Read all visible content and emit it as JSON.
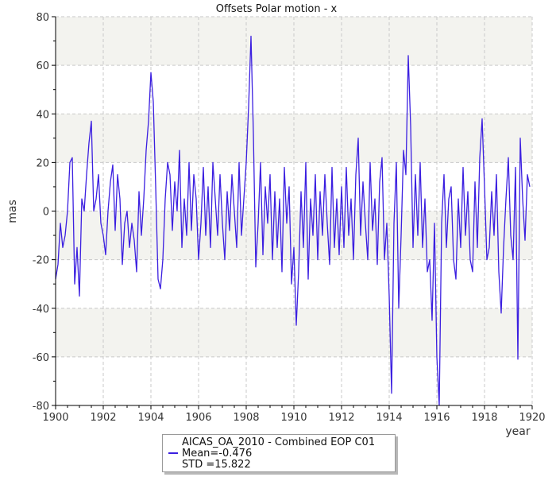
{
  "chart_data": {
    "type": "line",
    "title": "Offsets Polar motion - x",
    "xlabel": "year",
    "ylabel": "mas",
    "xlim": [
      1900,
      1920
    ],
    "ylim": [
      -80,
      80
    ],
    "xticks": [
      1900,
      1902,
      1904,
      1906,
      1908,
      1910,
      1912,
      1914,
      1916,
      1918,
      1920
    ],
    "yticks": [
      -80,
      -60,
      -40,
      -20,
      0,
      20,
      40,
      60,
      80
    ],
    "grid": true,
    "line_color": "#3b1fe0",
    "band_color": "#f3f3ef",
    "legend": {
      "placement": "bottom-center",
      "series_name": "AICAS_OA_2010 - Combined EOP C01",
      "mean_text": "Mean=-0.476",
      "std_text": "STD =15.822"
    },
    "series": [
      {
        "name": "AICAS_OA_2010 - Combined EOP C01",
        "points": [
          [
            1900.0,
            -28
          ],
          [
            1900.1,
            -22
          ],
          [
            1900.2,
            -5
          ],
          [
            1900.3,
            -15
          ],
          [
            1900.4,
            -10
          ],
          [
            1900.5,
            0
          ],
          [
            1900.6,
            20
          ],
          [
            1900.7,
            22
          ],
          [
            1900.8,
            -30
          ],
          [
            1900.9,
            -15
          ],
          [
            1901.0,
            -35
          ],
          [
            1901.1,
            5
          ],
          [
            1901.2,
            0
          ],
          [
            1901.3,
            15
          ],
          [
            1901.4,
            28
          ],
          [
            1901.5,
            37
          ],
          [
            1901.6,
            0
          ],
          [
            1901.7,
            5
          ],
          [
            1901.8,
            15
          ],
          [
            1901.9,
            -5
          ],
          [
            1902.0,
            -10
          ],
          [
            1902.1,
            -18
          ],
          [
            1902.2,
            0
          ],
          [
            1902.3,
            12
          ],
          [
            1902.4,
            19
          ],
          [
            1902.5,
            -8
          ],
          [
            1902.6,
            15
          ],
          [
            1902.7,
            5
          ],
          [
            1902.8,
            -22
          ],
          [
            1902.9,
            -5
          ],
          [
            1903.0,
            0
          ],
          [
            1903.1,
            -15
          ],
          [
            1903.2,
            -5
          ],
          [
            1903.3,
            -12
          ],
          [
            1903.4,
            -25
          ],
          [
            1903.5,
            8
          ],
          [
            1903.6,
            -10
          ],
          [
            1903.7,
            5
          ],
          [
            1903.8,
            25
          ],
          [
            1903.9,
            37
          ],
          [
            1904.0,
            57
          ],
          [
            1904.1,
            45
          ],
          [
            1904.2,
            10
          ],
          [
            1904.3,
            -28
          ],
          [
            1904.4,
            -32
          ],
          [
            1904.5,
            -20
          ],
          [
            1904.6,
            5
          ],
          [
            1904.7,
            20
          ],
          [
            1904.8,
            15
          ],
          [
            1904.9,
            -8
          ],
          [
            1905.0,
            12
          ],
          [
            1905.1,
            0
          ],
          [
            1905.2,
            25
          ],
          [
            1905.3,
            -15
          ],
          [
            1905.4,
            5
          ],
          [
            1905.5,
            -10
          ],
          [
            1905.6,
            20
          ],
          [
            1905.7,
            -8
          ],
          [
            1905.8,
            15
          ],
          [
            1905.9,
            5
          ],
          [
            1906.0,
            -20
          ],
          [
            1906.1,
            -5
          ],
          [
            1906.2,
            18
          ],
          [
            1906.3,
            -10
          ],
          [
            1906.4,
            10
          ],
          [
            1906.5,
            -15
          ],
          [
            1906.6,
            20
          ],
          [
            1906.7,
            5
          ],
          [
            1906.8,
            -10
          ],
          [
            1906.9,
            15
          ],
          [
            1907.0,
            -5
          ],
          [
            1907.1,
            -20
          ],
          [
            1907.2,
            8
          ],
          [
            1907.3,
            -8
          ],
          [
            1907.4,
            15
          ],
          [
            1907.5,
            0
          ],
          [
            1907.6,
            -15
          ],
          [
            1907.7,
            20
          ],
          [
            1907.8,
            -10
          ],
          [
            1907.9,
            5
          ],
          [
            1908.0,
            20
          ],
          [
            1908.1,
            43
          ],
          [
            1908.2,
            72
          ],
          [
            1908.3,
            32
          ],
          [
            1908.4,
            -23
          ],
          [
            1908.5,
            -5
          ],
          [
            1908.6,
            20
          ],
          [
            1908.7,
            -18
          ],
          [
            1908.8,
            10
          ],
          [
            1908.9,
            -5
          ],
          [
            1909.0,
            15
          ],
          [
            1909.1,
            -20
          ],
          [
            1909.2,
            8
          ],
          [
            1909.3,
            -15
          ],
          [
            1909.4,
            5
          ],
          [
            1909.5,
            -25
          ],
          [
            1909.6,
            18
          ],
          [
            1909.7,
            -5
          ],
          [
            1909.8,
            10
          ],
          [
            1909.9,
            -30
          ],
          [
            1910.0,
            -15
          ],
          [
            1910.1,
            -47
          ],
          [
            1910.2,
            -25
          ],
          [
            1910.3,
            8
          ],
          [
            1910.4,
            -15
          ],
          [
            1910.5,
            20
          ],
          [
            1910.6,
            -28
          ],
          [
            1910.7,
            5
          ],
          [
            1910.8,
            -10
          ],
          [
            1910.9,
            15
          ],
          [
            1911.0,
            -20
          ],
          [
            1911.1,
            8
          ],
          [
            1911.2,
            -10
          ],
          [
            1911.3,
            15
          ],
          [
            1911.4,
            -5
          ],
          [
            1911.5,
            -22
          ],
          [
            1911.6,
            18
          ],
          [
            1911.7,
            -15
          ],
          [
            1911.8,
            5
          ],
          [
            1911.9,
            -18
          ],
          [
            1912.0,
            10
          ],
          [
            1912.1,
            -15
          ],
          [
            1912.2,
            18
          ],
          [
            1912.3,
            -10
          ],
          [
            1912.4,
            5
          ],
          [
            1912.5,
            -20
          ],
          [
            1912.6,
            15
          ],
          [
            1912.7,
            30
          ],
          [
            1912.8,
            -10
          ],
          [
            1912.9,
            12
          ],
          [
            1913.0,
            -5
          ],
          [
            1913.1,
            -20
          ],
          [
            1913.2,
            20
          ],
          [
            1913.3,
            -8
          ],
          [
            1913.4,
            5
          ],
          [
            1913.5,
            -22
          ],
          [
            1913.6,
            12
          ],
          [
            1913.7,
            22
          ],
          [
            1913.8,
            -20
          ],
          [
            1913.9,
            -5
          ],
          [
            1914.0,
            -35
          ],
          [
            1914.1,
            -75
          ],
          [
            1914.2,
            -5
          ],
          [
            1914.3,
            20
          ],
          [
            1914.4,
            -40
          ],
          [
            1914.5,
            -10
          ],
          [
            1914.6,
            25
          ],
          [
            1914.7,
            15
          ],
          [
            1914.8,
            64
          ],
          [
            1914.9,
            35
          ],
          [
            1915.0,
            -15
          ],
          [
            1915.1,
            15
          ],
          [
            1915.2,
            -10
          ],
          [
            1915.3,
            20
          ],
          [
            1915.4,
            -15
          ],
          [
            1915.5,
            5
          ],
          [
            1915.6,
            -25
          ],
          [
            1915.7,
            -20
          ],
          [
            1915.8,
            -45
          ],
          [
            1915.9,
            -5
          ],
          [
            1916.0,
            -60
          ],
          [
            1916.1,
            -80
          ],
          [
            1916.2,
            -5
          ],
          [
            1916.3,
            15
          ],
          [
            1916.4,
            -15
          ],
          [
            1916.5,
            5
          ],
          [
            1916.6,
            10
          ],
          [
            1916.7,
            -20
          ],
          [
            1916.8,
            -28
          ],
          [
            1916.9,
            5
          ],
          [
            1917.0,
            -15
          ],
          [
            1917.1,
            18
          ],
          [
            1917.2,
            -10
          ],
          [
            1917.3,
            8
          ],
          [
            1917.4,
            -20
          ],
          [
            1917.5,
            -25
          ],
          [
            1917.6,
            12
          ],
          [
            1917.7,
            -15
          ],
          [
            1917.8,
            22
          ],
          [
            1917.9,
            38
          ],
          [
            1918.0,
            10
          ],
          [
            1918.1,
            -20
          ],
          [
            1918.2,
            -15
          ],
          [
            1918.3,
            8
          ],
          [
            1918.4,
            -10
          ],
          [
            1918.5,
            15
          ],
          [
            1918.6,
            -25
          ],
          [
            1918.7,
            -42
          ],
          [
            1918.8,
            -15
          ],
          [
            1918.9,
            5
          ],
          [
            1919.0,
            22
          ],
          [
            1919.1,
            -10
          ],
          [
            1919.2,
            -20
          ],
          [
            1919.3,
            18
          ],
          [
            1919.4,
            -61
          ],
          [
            1919.5,
            30
          ],
          [
            1919.6,
            5
          ],
          [
            1919.7,
            -12
          ],
          [
            1919.8,
            15
          ],
          [
            1919.9,
            10
          ]
        ]
      }
    ]
  }
}
